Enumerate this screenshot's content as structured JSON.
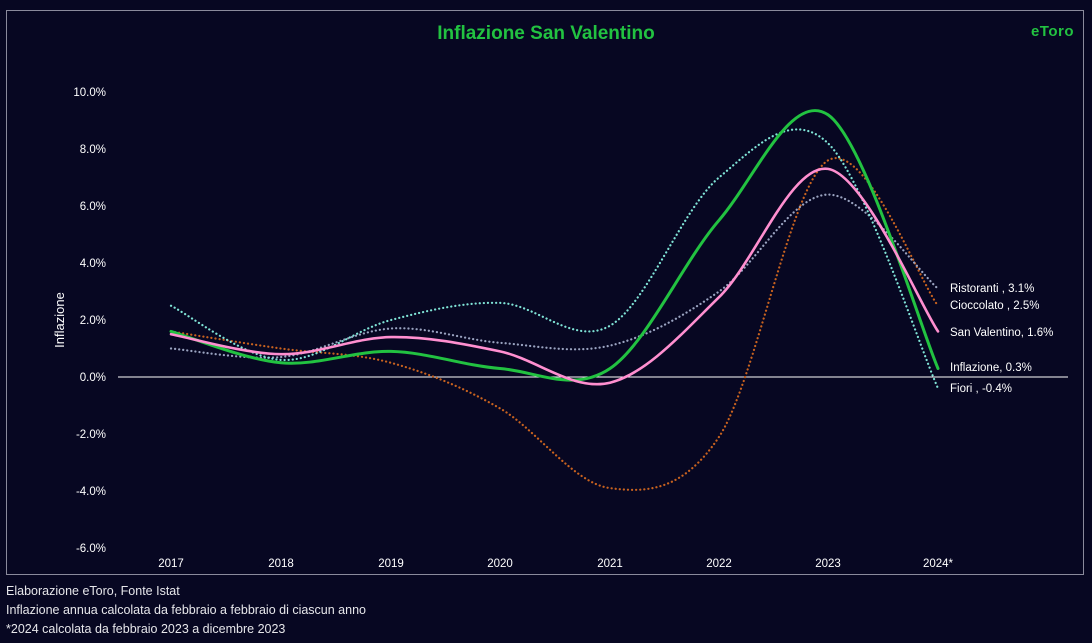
{
  "chart_data": {
    "type": "line",
    "title": "Inflazione San Valentino",
    "ylabel": "Inflazione",
    "xlabel": "",
    "categories": [
      "2017",
      "2018",
      "2019",
      "2020",
      "2021",
      "2022",
      "2023",
      "2024*"
    ],
    "y_ticks": [
      "10.0%",
      "8.0%",
      "6.0%",
      "4.0%",
      "2.0%",
      "0.0%",
      "-2.0%",
      "-4.0%",
      "-6.0%"
    ],
    "ylim": [
      -6,
      10
    ],
    "grid": false,
    "series": [
      {
        "key": "ristoranti",
        "name": "Ristoranti",
        "end_label": "Ristoranti  , 3.1%",
        "style": "dotted",
        "color": "#9aa3c0",
        "values": [
          1.0,
          0.7,
          1.7,
          1.2,
          1.1,
          3.0,
          6.4,
          3.1
        ]
      },
      {
        "key": "cioccolato",
        "name": "Cioccolato",
        "end_label": "Cioccolato  , 2.5%",
        "style": "dotted",
        "color": "#c8621f",
        "values": [
          1.6,
          1.0,
          0.5,
          -1.1,
          -3.9,
          -2.1,
          7.6,
          2.5
        ]
      },
      {
        "key": "san_valentino",
        "name": "San Valentino",
        "end_label": "San Valentino, 1.6%",
        "style": "solid-thin",
        "color": "#ff8fd0",
        "values": [
          1.5,
          0.8,
          1.4,
          0.9,
          -0.2,
          2.8,
          7.3,
          1.6
        ]
      },
      {
        "key": "inflazione",
        "name": "Inflazione",
        "end_label": "Inflazione, 0.3%",
        "style": "solid",
        "color": "#22c241",
        "values": [
          1.6,
          0.5,
          0.9,
          0.3,
          0.3,
          5.5,
          9.2,
          0.3
        ]
      },
      {
        "key": "fiori",
        "name": "Fiori",
        "end_label": "Fiori  , -0.4%",
        "style": "dotted",
        "color": "#7fe3d6",
        "values": [
          2.5,
          0.6,
          2.0,
          2.6,
          1.8,
          7.0,
          8.2,
          -0.4
        ]
      }
    ]
  },
  "brand": {
    "logo_text": "eToro"
  },
  "footer": {
    "line1": "Elaborazione eToro, Fonte Istat",
    "line2": "Inflazione annua calcolata da febbraio a febbraio di ciascun anno",
    "line3": "*2024 calcolata da febbraio 2023 a dicembre 2023"
  }
}
